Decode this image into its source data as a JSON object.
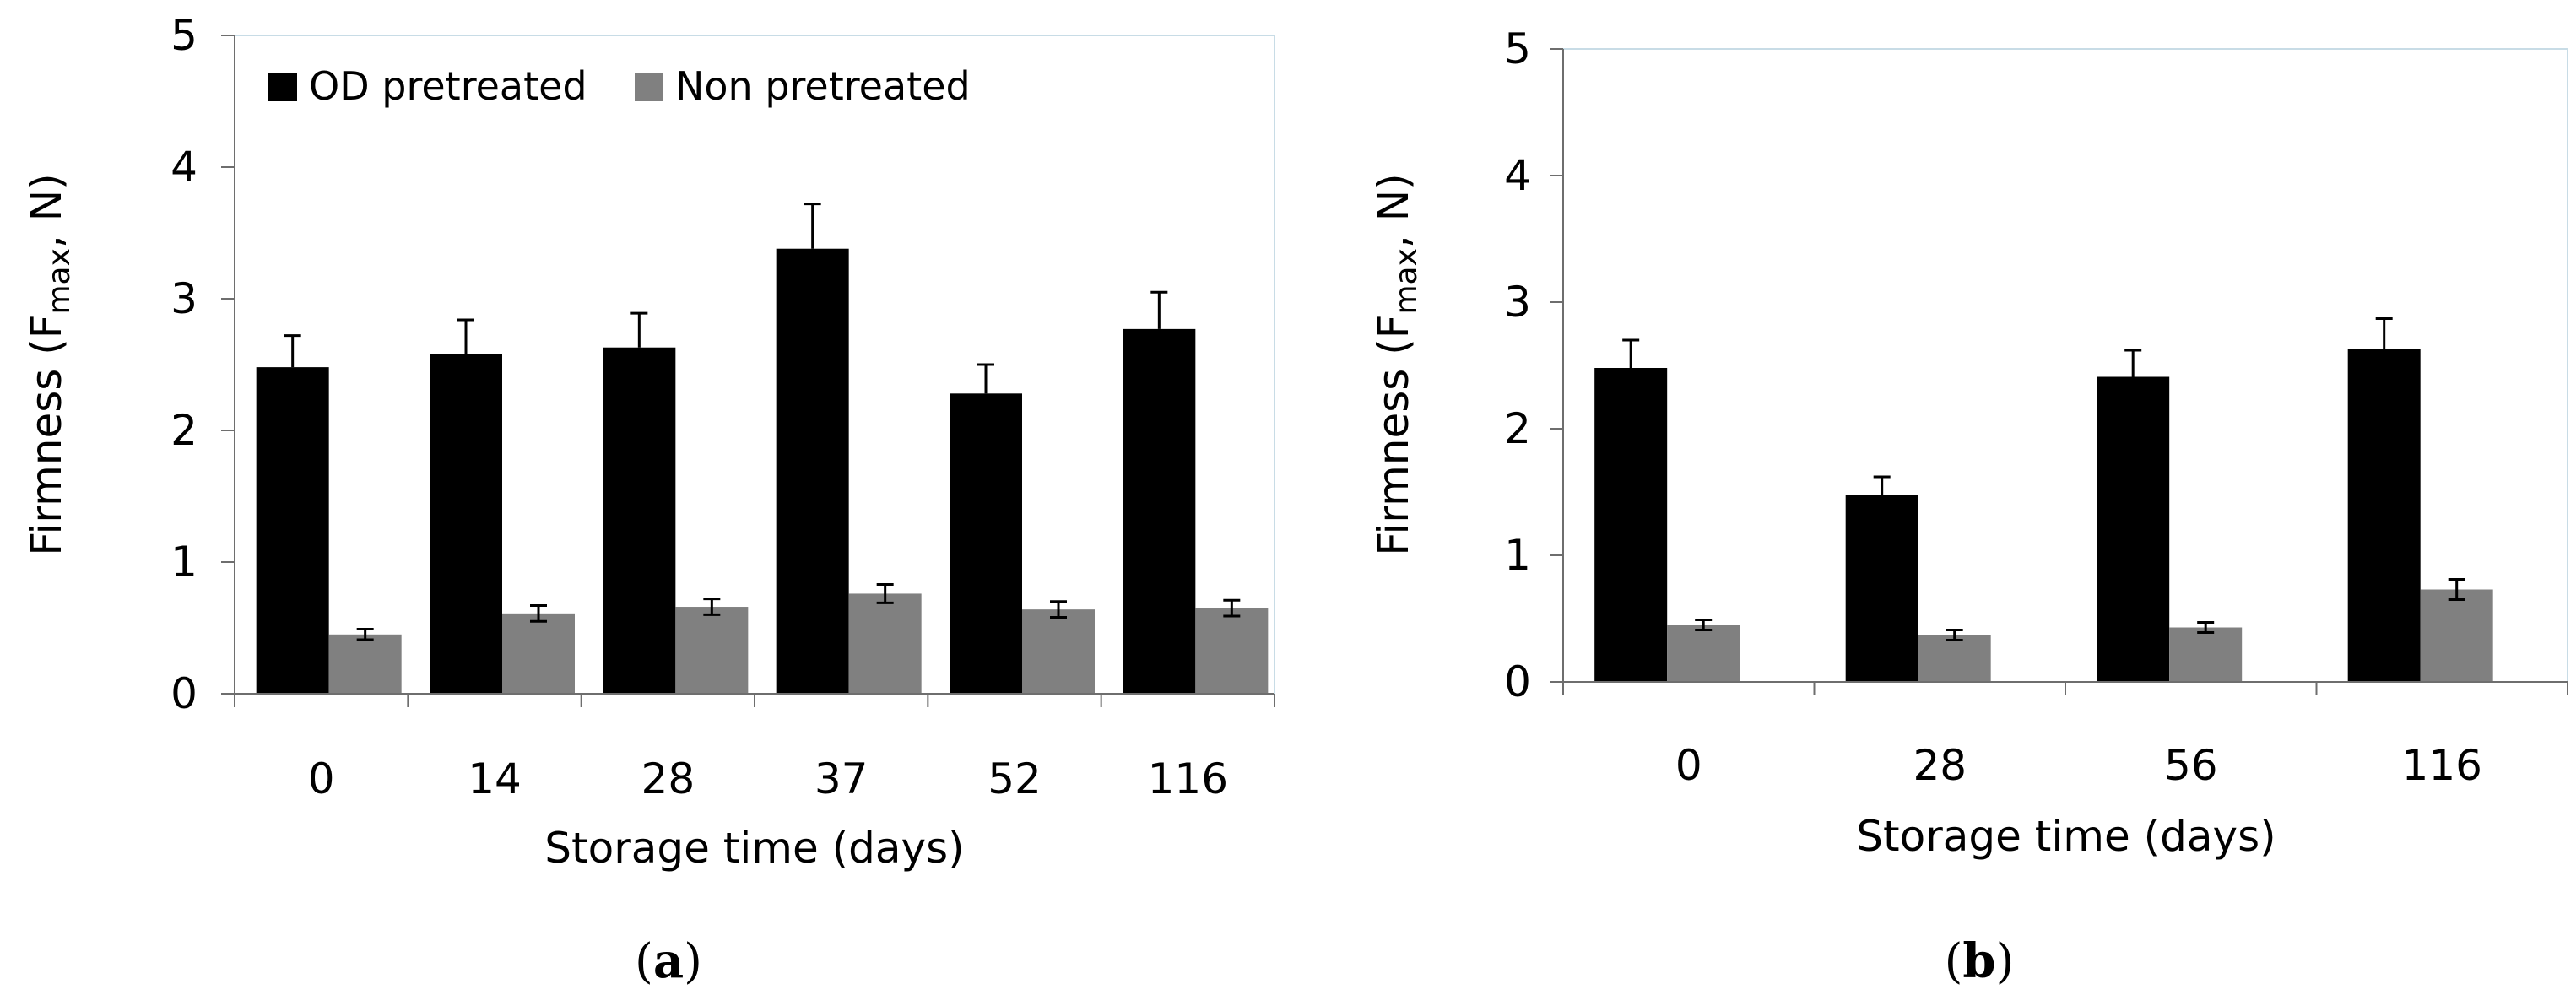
{
  "chart_data": [
    {
      "type": "bar",
      "panel_label": "a",
      "categories": [
        "0",
        "14",
        "28",
        "37",
        "52",
        "116"
      ],
      "series": [
        {
          "name": "OD pretreated",
          "color": "#000000",
          "values": [
            2.48,
            2.58,
            2.63,
            3.38,
            2.28,
            2.77
          ],
          "errors": [
            0.24,
            0.26,
            0.26,
            0.34,
            0.22,
            0.28
          ]
        },
        {
          "name": "Non pretreated",
          "color": "#808080",
          "values": [
            0.45,
            0.61,
            0.66,
            0.76,
            0.64,
            0.65
          ],
          "errors": [
            0.04,
            0.06,
            0.06,
            0.07,
            0.06,
            0.06
          ]
        }
      ],
      "xlabel": "Storage time (days)",
      "ylabel_main": "Firmness  (F",
      "ylabel_sub": "max",
      "ylabel_tail": ", N)",
      "ylim": [
        0,
        5
      ],
      "yticks": [
        "0",
        "1",
        "2",
        "3",
        "4",
        "5"
      ],
      "legend": "top-left",
      "grid": false
    },
    {
      "type": "bar",
      "panel_label": "b",
      "categories": [
        "0",
        "28",
        "56",
        "116"
      ],
      "series": [
        {
          "name": "OD pretreated",
          "color": "#000000",
          "values": [
            2.48,
            1.48,
            2.41,
            2.63
          ],
          "errors": [
            0.22,
            0.14,
            0.21,
            0.24
          ]
        },
        {
          "name": "Non pretreated",
          "color": "#808080",
          "values": [
            0.45,
            0.37,
            0.43,
            0.73
          ],
          "errors": [
            0.04,
            0.04,
            0.04,
            0.08
          ]
        }
      ],
      "xlabel": "Storage time (days)",
      "ylabel_main": "Firmness  (F",
      "ylabel_sub": "max",
      "ylabel_tail": ", N)",
      "ylim": [
        0,
        5
      ],
      "yticks": [
        "0",
        "1",
        "2",
        "3",
        "4",
        "5"
      ],
      "legend": "none",
      "grid": false
    }
  ]
}
